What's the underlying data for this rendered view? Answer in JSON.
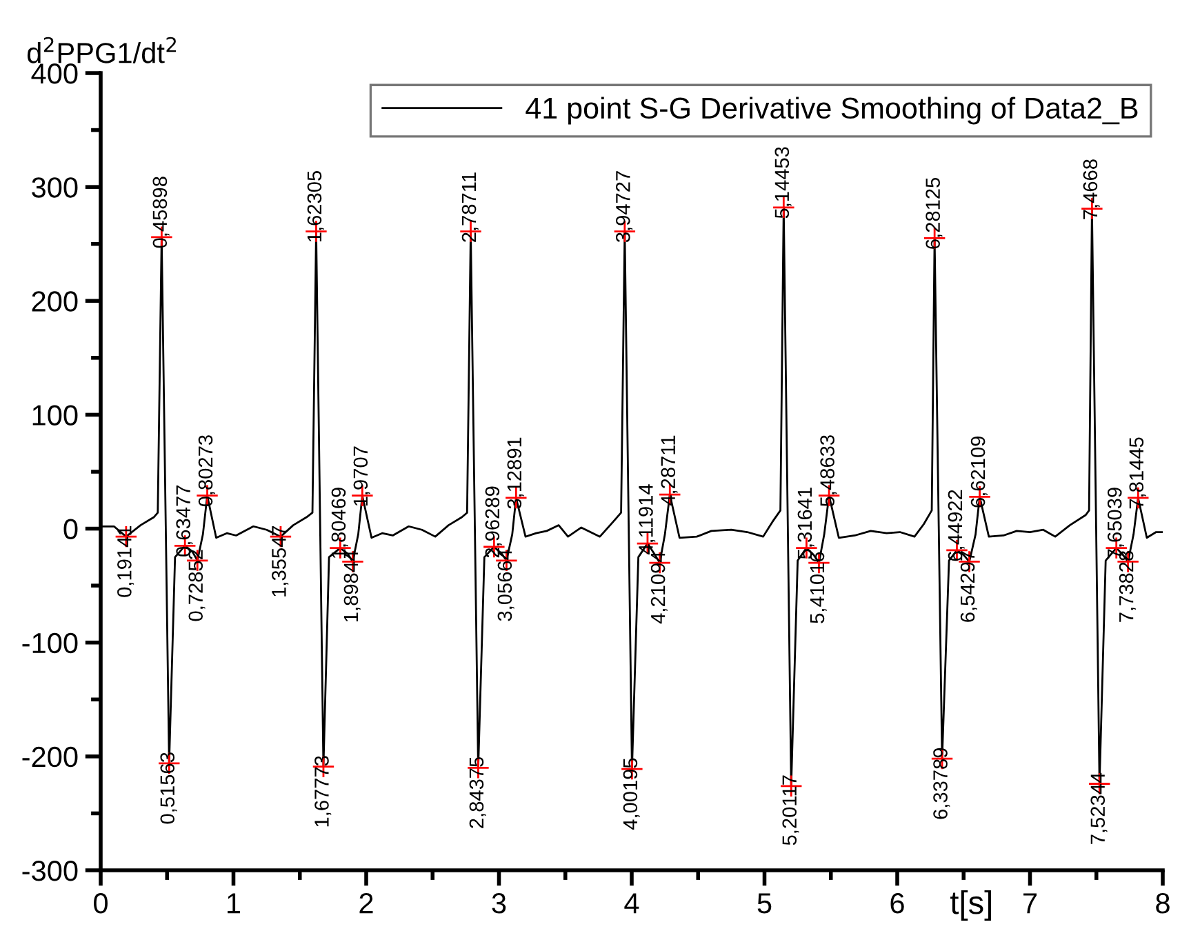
{
  "chart_data": {
    "type": "line",
    "ylabel": "d$^{2}$PPG1/dt$^{2}$",
    "xlabel": "t[s]",
    "xlim": [
      0,
      8
    ],
    "xticks": [
      0,
      1,
      2,
      3,
      4,
      5,
      6,
      7,
      8
    ],
    "ylim": [
      -300,
      400
    ],
    "yticks": [
      -300,
      -200,
      -100,
      0,
      100,
      200,
      300,
      400
    ],
    "grid": false,
    "legend": "top right",
    "series": [
      {
        "name": "41 point S-G Derivative Smoothing of Data2_B",
        "color": "#000000",
        "marker": "none",
        "line_style": "solid",
        "x": [
          0,
          0.1,
          0.19141,
          0.3,
          0.4,
          0.43,
          0.45898,
          0.51563,
          0.56,
          0.63477,
          0.69,
          0.72852,
          0.77,
          0.80273,
          0.87,
          0.95,
          1.02,
          1.15,
          1.25,
          1.35547,
          1.45,
          1.55,
          1.595,
          1.62305,
          1.67773,
          1.72,
          1.80469,
          1.86,
          1.89844,
          1.94,
          1.9707,
          2.04,
          2.12,
          2.2,
          2.32,
          2.42,
          2.52,
          2.62,
          2.72,
          2.76,
          2.78711,
          2.84375,
          2.89,
          2.96289,
          3.02,
          3.05664,
          3.1,
          3.12891,
          3.2,
          3.28,
          3.36,
          3.45,
          3.52,
          3.62,
          3.76,
          3.86,
          3.92,
          3.94727,
          4.00195,
          4.05,
          4.11914,
          4.17,
          4.21094,
          4.25,
          4.28711,
          4.36,
          4.49,
          4.6,
          4.75,
          4.87,
          4.99,
          5.06,
          5.12,
          5.14453,
          5.20117,
          5.25,
          5.31641,
          5.37,
          5.41016,
          5.45,
          5.48633,
          5.56,
          5.68,
          5.8,
          5.92,
          6.02,
          6.13,
          6.2,
          6.26,
          6.28125,
          6.33789,
          6.39,
          6.44922,
          6.5,
          6.54297,
          6.59,
          6.62109,
          6.69,
          6.8,
          6.9,
          7.0,
          7.1,
          7.19,
          7.3,
          7.42,
          7.445,
          7.4668,
          7.52344,
          7.57,
          7.65039,
          7.7,
          7.73828,
          7.78,
          7.81445,
          7.88,
          7.95,
          8.0
        ],
        "values": [
          2,
          2,
          -7,
          3,
          10,
          14,
          256,
          -206,
          -25,
          -15,
          -20,
          -28,
          -5,
          29,
          -8,
          -4,
          -6,
          2,
          -1,
          -7,
          3,
          10,
          14,
          261,
          -209,
          -25,
          -17,
          -22,
          -29,
          -5,
          29,
          -8,
          -4,
          -6,
          2,
          -1,
          -7,
          3,
          10,
          14,
          261,
          -210,
          -25,
          -16,
          -22,
          -28,
          -5,
          27,
          -7,
          -4,
          -2,
          3,
          -7,
          1,
          -7,
          6,
          14,
          261,
          -211,
          -25,
          -13,
          -22,
          -30,
          -5,
          30,
          -8,
          -7,
          -2,
          -1,
          -3,
          -7,
          6,
          16,
          282,
          -226,
          -28,
          -17,
          -23,
          -30,
          -5,
          29,
          -8,
          -6,
          -2,
          -4,
          -3,
          -7,
          4,
          16,
          255,
          -202,
          -28,
          -19,
          -23,
          -29,
          -5,
          28,
          -7,
          -6,
          -2,
          -3,
          -1,
          -7,
          3,
          12,
          16,
          281,
          -224,
          -28,
          -17,
          -23,
          -29,
          -5,
          27,
          -8,
          -3,
          -3
        ]
      },
      {
        "type": "scatter",
        "color": "#ff0000",
        "marker": "cross",
        "x": [
          0.19141,
          0.45898,
          0.51563,
          0.63477,
          0.72852,
          0.80273,
          1.35547,
          1.62305,
          1.67773,
          1.80469,
          1.89844,
          1.9707,
          2.78711,
          2.84375,
          2.96289,
          3.05664,
          3.12891,
          3.94727,
          4.00195,
          4.11914,
          4.21094,
          4.28711,
          5.14453,
          5.20117,
          5.31641,
          5.41016,
          5.48633,
          6.28125,
          6.33789,
          6.44922,
          6.54297,
          6.62109,
          7.4668,
          7.52344,
          7.65039,
          7.73828,
          7.81445
        ],
        "values": [
          -7,
          256,
          -206,
          -15,
          -28,
          29,
          -7,
          261,
          -209,
          -17,
          -29,
          29,
          261,
          -210,
          -16,
          -28,
          27,
          261,
          -211,
          -13,
          -30,
          30,
          282,
          -226,
          -17,
          -30,
          29,
          255,
          -202,
          -19,
          -29,
          28,
          281,
          -224,
          -17,
          -29,
          27
        ]
      }
    ],
    "annotations": [
      {
        "text": "0,19141",
        "x": 0.19141,
        "y": -7
      },
      {
        "text": "0,45898",
        "x": 0.45898,
        "y": 256
      },
      {
        "text": "0,51563",
        "x": 0.51563,
        "y": -206
      },
      {
        "text": "0,63477",
        "x": 0.63477,
        "y": -15
      },
      {
        "text": "0,72852",
        "x": 0.72852,
        "y": -28
      },
      {
        "text": "0,80273",
        "x": 0.80273,
        "y": 29
      },
      {
        "text": "1,35547",
        "x": 1.35547,
        "y": -7
      },
      {
        "text": "1,62305",
        "x": 1.62305,
        "y": 261
      },
      {
        "text": "1,67773",
        "x": 1.67773,
        "y": -209
      },
      {
        "text": "1,80469",
        "x": 1.80469,
        "y": -17
      },
      {
        "text": "1,89844",
        "x": 1.89844,
        "y": -29
      },
      {
        "text": "1,9707",
        "x": 1.9707,
        "y": 29
      },
      {
        "text": "2,78711",
        "x": 2.78711,
        "y": 261
      },
      {
        "text": "2,84375",
        "x": 2.84375,
        "y": -210
      },
      {
        "text": "2,96289",
        "x": 2.96289,
        "y": -16
      },
      {
        "text": "3,05664",
        "x": 3.05664,
        "y": -28
      },
      {
        "text": "3,12891",
        "x": 3.12891,
        "y": 27
      },
      {
        "text": "3,94727",
        "x": 3.94727,
        "y": 261
      },
      {
        "text": "4,00195",
        "x": 4.00195,
        "y": -211
      },
      {
        "text": "4,11914",
        "x": 4.11914,
        "y": -13
      },
      {
        "text": "4,21094",
        "x": 4.21094,
        "y": -30
      },
      {
        "text": "4,28711",
        "x": 4.28711,
        "y": 30
      },
      {
        "text": "5,14453",
        "x": 5.14453,
        "y": 282
      },
      {
        "text": "5,20117",
        "x": 5.20117,
        "y": -226
      },
      {
        "text": "5,31641",
        "x": 5.31641,
        "y": -17
      },
      {
        "text": "5,41016",
        "x": 5.41016,
        "y": -30
      },
      {
        "text": "5,48633",
        "x": 5.48633,
        "y": 29
      },
      {
        "text": "6,28125",
        "x": 6.28125,
        "y": 255
      },
      {
        "text": "6,33789",
        "x": 6.33789,
        "y": -202
      },
      {
        "text": "6,44922",
        "x": 6.44922,
        "y": -19
      },
      {
        "text": "6,54297",
        "x": 6.54297,
        "y": -29
      },
      {
        "text": "6,62109",
        "x": 6.62109,
        "y": 28
      },
      {
        "text": "7,4668",
        "x": 7.4668,
        "y": 281
      },
      {
        "text": "7,52344",
        "x": 7.52344,
        "y": -224
      },
      {
        "text": "7,65039",
        "x": 7.65039,
        "y": -17
      },
      {
        "text": "7,73828",
        "x": 7.73828,
        "y": -29
      },
      {
        "text": "7,81445",
        "x": 7.81445,
        "y": 27
      }
    ]
  }
}
